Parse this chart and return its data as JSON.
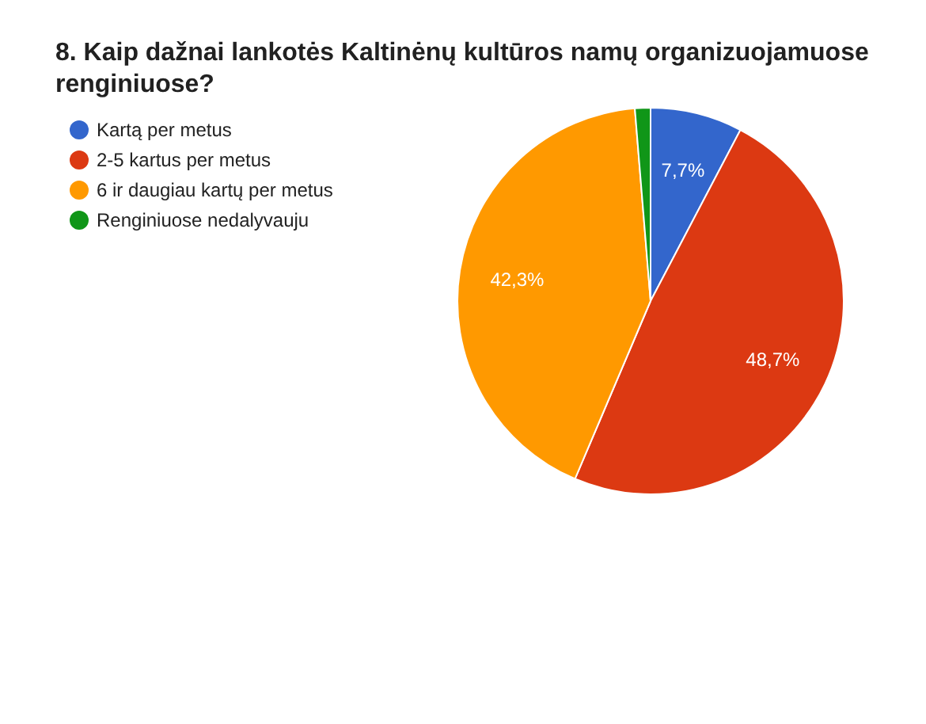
{
  "chart_data": {
    "type": "pie",
    "title": "8. Kaip dažnai lankotės Kaltinėnų kultūros namų organizuojamuose renginiuose?",
    "categories": [
      "Kartą per metus",
      "2-5 kartus per metus",
      "6 ir daugiau kartų per metus",
      "Renginiuose nedalyvauju"
    ],
    "values": [
      7.7,
      48.7,
      42.3,
      1.3
    ],
    "colors": [
      "#3366cc",
      "#dc3912",
      "#ff9900",
      "#109618"
    ],
    "value_labels": [
      "7,7%",
      "48,7%",
      "42,3%",
      null
    ],
    "legend": "top left"
  }
}
